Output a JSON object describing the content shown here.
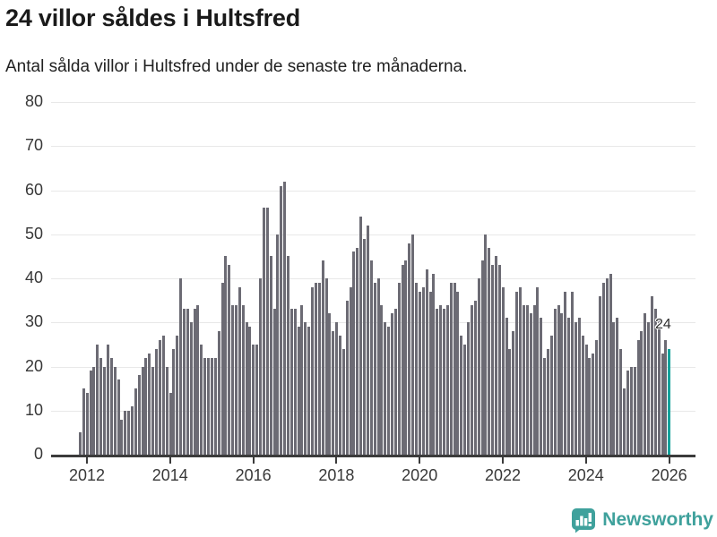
{
  "header": {
    "title": "24 villor såldes i Hultsfred",
    "subtitle": "Antal sålda villor i Hultsfred under de senaste tre månaderna."
  },
  "chart_data": {
    "type": "bar",
    "title": "24 villor såldes i Hultsfred",
    "subtitle": "Antal sålda villor i Hultsfred under de senaste tre månaderna.",
    "x_start_month": "2011-11",
    "x_frequency": "monthly",
    "values": [
      5,
      15,
      14,
      19,
      20,
      25,
      22,
      20,
      25,
      22,
      20,
      17,
      8,
      10,
      10,
      11,
      15,
      18,
      20,
      22,
      23,
      20,
      24,
      26,
      27,
      20,
      14,
      24,
      27,
      40,
      33,
      33,
      30,
      33,
      34,
      25,
      22,
      22,
      22,
      22,
      28,
      39,
      45,
      43,
      34,
      34,
      38,
      34,
      30,
      29,
      25,
      25,
      40,
      56,
      56,
      45,
      33,
      50,
      61,
      62,
      45,
      33,
      33,
      29,
      34,
      30,
      29,
      38,
      39,
      39,
      44,
      40,
      32,
      28,
      30,
      27,
      24,
      35,
      38,
      46,
      47,
      54,
      49,
      52,
      44,
      39,
      40,
      34,
      30,
      29,
      32,
      33,
      39,
      43,
      44,
      48,
      50,
      39,
      37,
      38,
      42,
      37,
      41,
      33,
      34,
      33,
      34,
      39,
      39,
      37,
      27,
      25,
      30,
      34,
      35,
      40,
      44,
      50,
      47,
      43,
      45,
      43,
      38,
      31,
      24,
      28,
      37,
      38,
      34,
      34,
      32,
      34,
      38,
      31,
      22,
      24,
      27,
      33,
      34,
      32,
      37,
      31,
      37,
      30,
      31,
      27,
      25,
      22,
      23,
      26,
      36,
      39,
      40,
      41,
      30,
      31,
      24,
      15,
      19,
      20,
      20,
      26,
      28,
      32,
      30,
      36,
      33,
      31,
      23,
      26,
      24
    ],
    "highlight": {
      "index_from_end": 1,
      "value": 24,
      "label": "24"
    },
    "x_tick_labels": [
      "2012",
      "2014",
      "2016",
      "2018",
      "2020",
      "2022",
      "2024",
      "2026"
    ],
    "y_ticks": [
      0,
      10,
      20,
      30,
      40,
      50,
      60,
      70,
      80
    ],
    "ylim": [
      0,
      80
    ],
    "grid": true,
    "legend": "none",
    "colors": {
      "bar": "#6c6b74",
      "highlight": "#14a29b",
      "gridline": "#e8e8e8",
      "axis": "#3b3b3b",
      "brand": "#3fa19c"
    }
  },
  "footer": {
    "brand": "Newsworthy"
  }
}
